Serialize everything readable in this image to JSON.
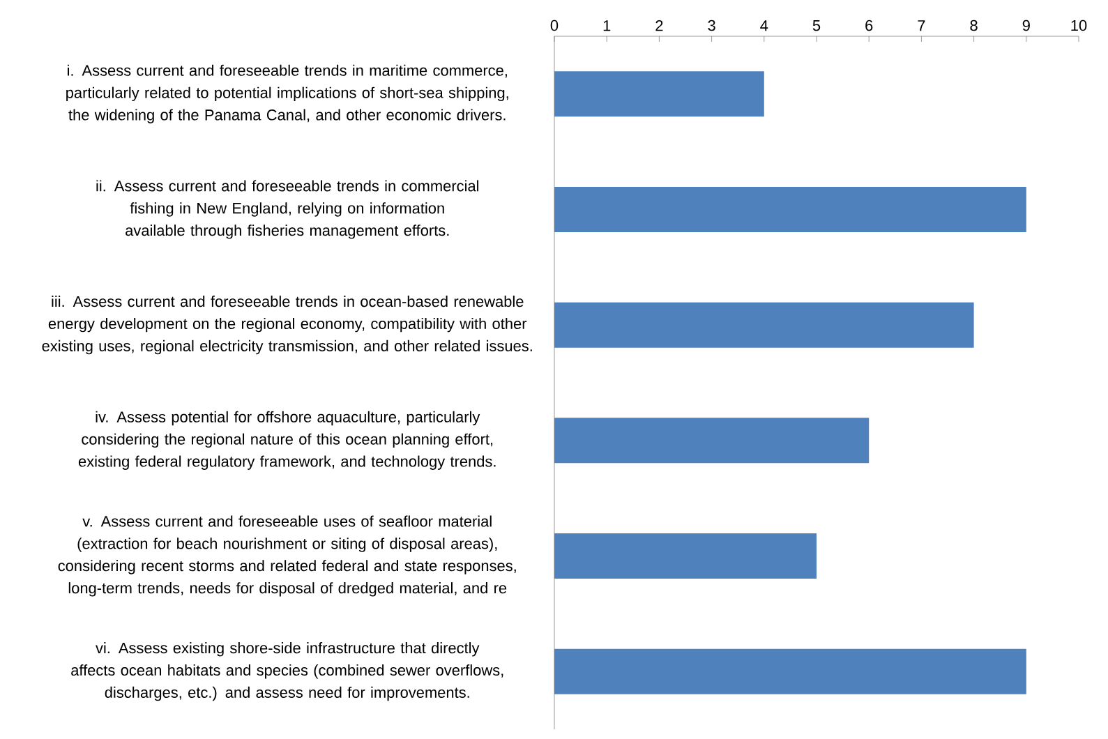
{
  "chart_data": {
    "type": "bar",
    "orientation": "horizontal",
    "categories": [
      "i. Assess current and foreseeable trends in maritime commerce, particularly related to potential implications of short-sea shipping, the widening of the Panama Canal, and other economic drivers.",
      "ii. Assess current and foreseeable trends in commercial fishing in New England, relying on information available through fisheries management efforts.",
      "iii. Assess current and foreseeable trends in ocean-based renewable energy development on the regional economy, compatibility with other existing uses, regional electricity transmission, and other related issues.",
      "iv. Assess potential for offshore aquaculture, particularly considering the regional nature of this ocean planning effort, existing federal regulatory framework, and technology trends.",
      "v. Assess current and foreseeable uses of seafloor material (extraction for beach nourishment or siting of disposal areas), considering recent storms and related federal and state responses, long-term trends, needs for disposal of dredged material, and re",
      "vi. Assess existing shore-side infrastructure that directly affects ocean habitats and species (combined sewer overflows, discharges, etc.) and assess need for improvements."
    ],
    "values": [
      4,
      9,
      8,
      6,
      5,
      9
    ],
    "color": "#4f81bd",
    "xlim": [
      0,
      10
    ],
    "xticks": [
      0,
      1,
      2,
      3,
      4,
      5,
      6,
      7,
      8,
      9,
      10
    ]
  }
}
